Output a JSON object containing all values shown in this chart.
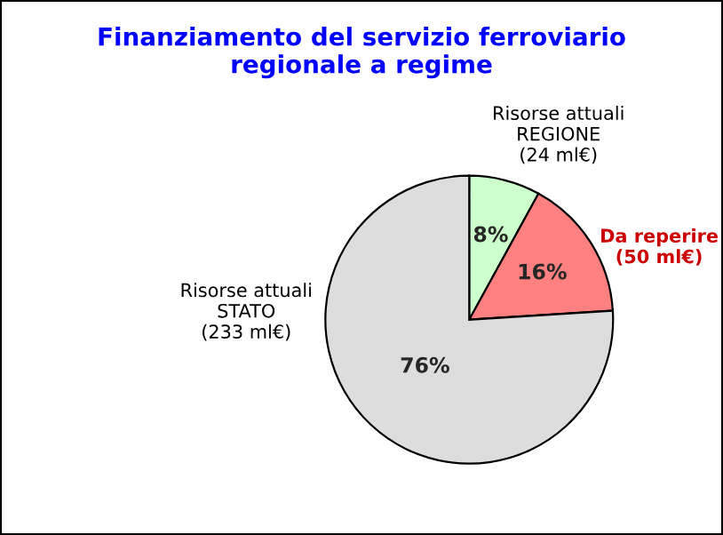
{
  "chart_data": {
    "type": "pie",
    "title": "Finanziamento del servizio ferroviario\nregionale a regime",
    "categories": [
      "Risorse attuali\nREGIONE\n(24 ml€)",
      "Da reperire\n(50 ml€)",
      "Risorse attuali\nSTATO\n(233 ml€)"
    ],
    "values": [
      8,
      16,
      76
    ],
    "value_labels": [
      "8%",
      "16%",
      "76%"
    ],
    "colors": [
      "#ccffcc",
      "#ff8080",
      "#dddddd"
    ]
  }
}
